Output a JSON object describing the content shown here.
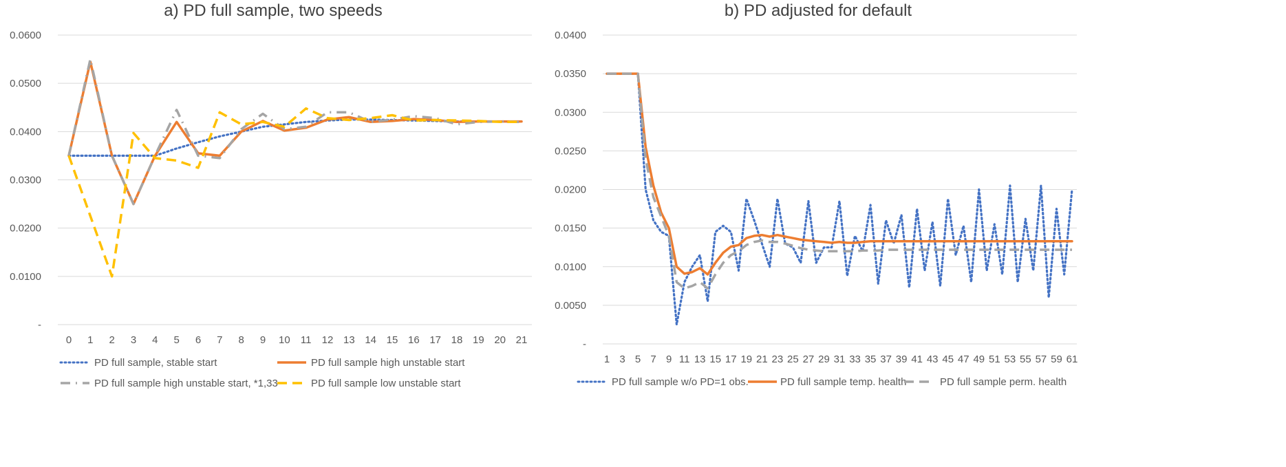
{
  "charts": [
    {
      "title": "a) PD full sample, two speeds",
      "y_tick_labels": [
        "-",
        "0.0100",
        "0.0200",
        "0.0300",
        "0.0400",
        "0.0500",
        "0.0600"
      ],
      "x_tick_labels": [
        "0",
        "1",
        "2",
        "3",
        "4",
        "5",
        "6",
        "7",
        "8",
        "9",
        "10",
        "11",
        "12",
        "13",
        "14",
        "15",
        "16",
        "17",
        "18",
        "19",
        "20",
        "21"
      ],
      "legend": [
        "PD full sample, stable start",
        "PD full sample high unstable start",
        "PD full sample high  unstable start, *1,33",
        "PD full sample low unstable start"
      ]
    },
    {
      "title": "b) PD adjusted for default",
      "y_tick_labels": [
        "-",
        "0.0050",
        "0.0100",
        "0.0150",
        "0.0200",
        "0.0250",
        "0.0300",
        "0.0350",
        "0.0400"
      ],
      "x_tick_labels": [
        "1",
        "3",
        "5",
        "7",
        "9",
        "11",
        "13",
        "15",
        "17",
        "19",
        "21",
        "23",
        "25",
        "27",
        "29",
        "31",
        "33",
        "35",
        "37",
        "39",
        "41",
        "43",
        "45",
        "47",
        "49",
        "51",
        "53",
        "55",
        "57",
        "59",
        "61"
      ],
      "legend": [
        "PD full sample w/o PD=1 obs.",
        "PD full sample temp. health",
        "PD full sample perm. health"
      ]
    }
  ],
  "colors": {
    "blue": "#4472c4",
    "orange": "#ed7d31",
    "gray": "#a5a5a5",
    "yellow": "#ffc000"
  },
  "chart_data": [
    {
      "type": "line",
      "title": "a) PD full sample, two speeds",
      "xlabel": "",
      "ylabel": "",
      "ylim": [
        0,
        0.06
      ],
      "grid": true,
      "legend_position": "bottom",
      "categories": [
        0,
        1,
        2,
        3,
        4,
        5,
        6,
        7,
        8,
        9,
        10,
        11,
        12,
        13,
        14,
        15,
        16,
        17,
        18,
        19,
        20,
        21
      ],
      "series": [
        {
          "name": "PD full sample, stable start",
          "color": "#4472c4",
          "style": "dotted",
          "values": [
            0.035,
            0.035,
            0.035,
            0.035,
            0.035,
            0.0365,
            0.0378,
            0.039,
            0.04,
            0.041,
            0.0415,
            0.042,
            0.0423,
            0.0425,
            0.0425,
            0.0424,
            0.0423,
            0.0422,
            0.0421,
            0.0421,
            0.0421,
            0.0421
          ]
        },
        {
          "name": "PD full sample high unstable start",
          "color": "#ed7d31",
          "style": "solid",
          "values": [
            0.035,
            0.0545,
            0.035,
            0.025,
            0.035,
            0.042,
            0.0355,
            0.035,
            0.04,
            0.0422,
            0.0402,
            0.0408,
            0.0425,
            0.043,
            0.042,
            0.0422,
            0.0426,
            0.0424,
            0.042,
            0.0421,
            0.0421,
            0.0421
          ]
        },
        {
          "name": "PD full sample high  unstable start, *1,33",
          "color": "#a5a5a5",
          "style": "dashdot",
          "values": [
            0.035,
            0.055,
            0.035,
            0.025,
            0.035,
            0.0445,
            0.035,
            0.0345,
            0.0405,
            0.0437,
            0.0405,
            0.041,
            0.044,
            0.044,
            0.042,
            0.0425,
            0.0432,
            0.0428,
            0.0415,
            0.042,
            0.0421,
            0.042
          ]
        },
        {
          "name": "PD full sample low unstable start",
          "color": "#ffc000",
          "style": "dashed",
          "values": [
            0.035,
            0.0225,
            0.01,
            0.0397,
            0.0345,
            0.034,
            0.0325,
            0.044,
            0.0415,
            0.042,
            0.041,
            0.0448,
            0.0428,
            0.0424,
            0.0428,
            0.0434,
            0.0423,
            0.0424,
            0.0423,
            0.0422,
            0.042,
            0.042
          ]
        }
      ]
    },
    {
      "type": "line",
      "title": "b) PD adjusted for default",
      "xlabel": "",
      "ylabel": "",
      "ylim": [
        0,
        0.04
      ],
      "grid": true,
      "legend_position": "bottom",
      "categories": [
        1,
        2,
        3,
        4,
        5,
        6,
        7,
        8,
        9,
        10,
        11,
        12,
        13,
        14,
        15,
        16,
        17,
        18,
        19,
        20,
        21,
        22,
        23,
        24,
        25,
        26,
        27,
        28,
        29,
        30,
        31,
        32,
        33,
        34,
        35,
        36,
        37,
        38,
        39,
        40,
        41,
        42,
        43,
        44,
        45,
        46,
        47,
        48,
        49,
        50,
        51,
        52,
        53,
        54,
        55,
        56,
        57,
        58,
        59,
        60,
        61
      ],
      "series": [
        {
          "name": "PD full sample w/o PD=1 obs.",
          "color": "#4472c4",
          "style": "dotted",
          "values": [
            0.035,
            0.035,
            0.035,
            0.035,
            0.035,
            0.02,
            0.016,
            0.0145,
            0.014,
            0.0025,
            0.008,
            0.01,
            0.0115,
            0.0055,
            0.0145,
            0.0153,
            0.0145,
            0.0095,
            0.0188,
            0.016,
            0.013,
            0.01,
            0.0188,
            0.013,
            0.0125,
            0.0105,
            0.0185,
            0.0105,
            0.0125,
            0.0125,
            0.0185,
            0.0088,
            0.014,
            0.012,
            0.018,
            0.0078,
            0.016,
            0.013,
            0.0167,
            0.0073,
            0.0175,
            0.0095,
            0.0158,
            0.0075,
            0.0188,
            0.0115,
            0.0153,
            0.008,
            0.02,
            0.0095,
            0.0155,
            0.009,
            0.0205,
            0.008,
            0.0162,
            0.0095,
            0.0205,
            0.006,
            0.0175,
            0.009,
            0.02
          ]
        },
        {
          "name": "PD full sample temp. health",
          "color": "#ed7d31",
          "style": "solid",
          "values": [
            0.035,
            0.035,
            0.035,
            0.035,
            0.035,
            0.0255,
            0.0205,
            0.017,
            0.015,
            0.01,
            0.0091,
            0.0093,
            0.0098,
            0.009,
            0.0105,
            0.0118,
            0.0126,
            0.0128,
            0.0137,
            0.014,
            0.0141,
            0.0139,
            0.0141,
            0.0139,
            0.0137,
            0.0135,
            0.0134,
            0.0133,
            0.0132,
            0.0131,
            0.0132,
            0.0131,
            0.0131,
            0.0132,
            0.0133,
            0.0133,
            0.0133,
            0.0133,
            0.0133,
            0.0133,
            0.0133,
            0.0133,
            0.0133,
            0.0133,
            0.0133,
            0.0133,
            0.0133,
            0.0133,
            0.0133,
            0.0133,
            0.0133,
            0.0133,
            0.0133,
            0.0133,
            0.0133,
            0.0133,
            0.0133,
            0.0133,
            0.0133,
            0.0133,
            0.0133
          ]
        },
        {
          "name": "PD full sample perm. health",
          "color": "#a5a5a5",
          "style": "dashed",
          "values": [
            0.035,
            0.035,
            0.035,
            0.035,
            0.035,
            0.024,
            0.019,
            0.0165,
            0.014,
            0.008,
            0.0072,
            0.0075,
            0.008,
            0.0072,
            0.009,
            0.0105,
            0.0115,
            0.012,
            0.0128,
            0.0132,
            0.0134,
            0.0132,
            0.0132,
            0.013,
            0.0127,
            0.0124,
            0.0122,
            0.0121,
            0.012,
            0.012,
            0.012,
            0.012,
            0.012,
            0.0121,
            0.0121,
            0.0121,
            0.0122,
            0.0122,
            0.0122,
            0.0122,
            0.0122,
            0.0122,
            0.0122,
            0.0122,
            0.0122,
            0.0122,
            0.0122,
            0.0122,
            0.0122,
            0.0122,
            0.0122,
            0.0122,
            0.0122,
            0.0122,
            0.0122,
            0.0122,
            0.0122,
            0.0122,
            0.0122,
            0.0122,
            0.0122
          ]
        }
      ]
    }
  ]
}
